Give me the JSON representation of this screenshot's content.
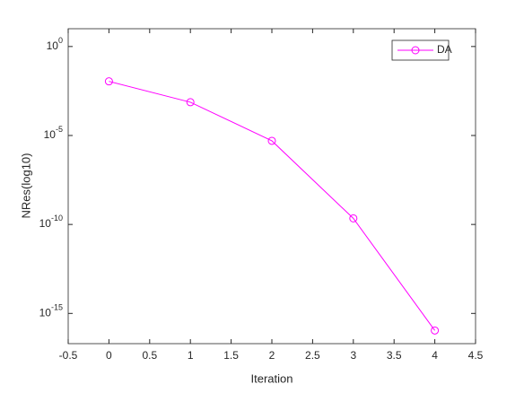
{
  "chart_data": {
    "type": "line",
    "log_y": true,
    "x_label": "Iteration",
    "y_label": "NRes(log10)",
    "x": [
      0,
      1,
      2,
      3,
      4
    ],
    "series": [
      {
        "name": "DA",
        "color": "#ff00ff",
        "marker": "circle",
        "values": [
          0.011,
          0.00074,
          5e-06,
          2.2e-10,
          1.1e-16
        ]
      }
    ],
    "xlim": [
      -0.5,
      4.5
    ],
    "xticks": [
      -0.5,
      0,
      0.5,
      1,
      1.5,
      2,
      2.5,
      3,
      3.5,
      4,
      4.5
    ],
    "ylim": [
      2e-17,
      10
    ],
    "yticks": [
      {
        "value": 1e-15,
        "label": "10^-15"
      },
      {
        "value": 1e-10,
        "label": "10^-10"
      },
      {
        "value": 1e-05,
        "label": "10^-5"
      },
      {
        "value": 1,
        "label": "10^0"
      }
    ],
    "legend": "top-right",
    "grid": false
  }
}
